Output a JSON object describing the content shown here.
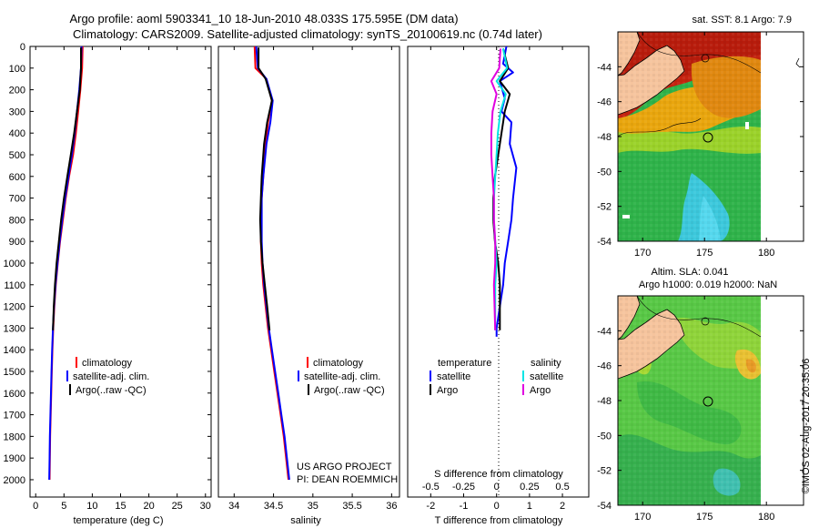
{
  "figure": {
    "title_line1": "Argo profile: aoml 5903341_10 18-Jun-2010 48.033S 175.595E (DM data)",
    "title_line2": "Climatology: CARS2009. Satellite-adjusted climatology: synTS_20100619.nc (0.74d later)",
    "credit": "©IMOS 02-Aug-2017 20:35:06",
    "project_line1": "US ARGO PROJECT",
    "project_line2": "PI: DEAN ROEMMICH"
  },
  "colors": {
    "climatology": "#ff0000",
    "satellite": "#0000ff",
    "argo": "#000000",
    "sal_satellite": "#00e5e5",
    "sal_argo": "#e000e0"
  },
  "chart_data": [
    {
      "type": "line",
      "name": "temperature-profile",
      "xlabel": "temperature (deg C)",
      "ylabel": "",
      "xlim": [
        -1,
        31
      ],
      "ylim": [
        0,
        2080
      ],
      "y_inverted": true,
      "xticks": [
        0,
        5,
        10,
        15,
        20,
        25,
        30
      ],
      "xtick_labels": [
        "0",
        "5",
        "10",
        "15",
        "20",
        "25",
        "30"
      ],
      "yticks": [
        0,
        100,
        200,
        300,
        400,
        500,
        600,
        700,
        800,
        900,
        1000,
        1100,
        1200,
        1300,
        1400,
        1500,
        1600,
        1700,
        1800,
        1900,
        2000
      ],
      "ytick_labels": [
        "0",
        "100",
        "200",
        "300",
        "400",
        "500",
        "600",
        "700",
        "800",
        "900",
        "1000",
        "1100",
        "1200",
        "1300",
        "1400",
        "1500",
        "1600",
        "1700",
        "1800",
        "1900",
        "2000"
      ],
      "legend": [
        "climatology",
        "satellite-adj. clim.",
        "Argo(..raw -QC)"
      ],
      "legend_position": "lower-center",
      "series": [
        {
          "name": "climatology",
          "color": "#ff0000",
          "x": [
            8.3,
            8.2,
            7.9,
            7.5,
            7.1,
            6.6,
            5.9,
            5.3,
            4.8,
            4.3,
            3.9,
            3.55,
            3.3,
            3.1,
            2.95,
            2.85,
            2.75,
            2.65,
            2.55,
            2.5,
            2.45
          ],
          "y": [
            0,
            100,
            200,
            300,
            400,
            500,
            600,
            700,
            800,
            900,
            1000,
            1100,
            1200,
            1300,
            1400,
            1500,
            1600,
            1700,
            1800,
            1900,
            2000
          ]
        },
        {
          "name": "satellite",
          "color": "#0000ff",
          "x": [
            8.1,
            8.0,
            7.7,
            7.3,
            6.9,
            6.4,
            5.8,
            5.2,
            4.7,
            4.25,
            3.85,
            3.5,
            3.25,
            3.05,
            2.9,
            2.8,
            2.7,
            2.6,
            2.5,
            2.45,
            2.4
          ],
          "y": [
            0,
            100,
            200,
            300,
            400,
            500,
            600,
            700,
            800,
            900,
            1000,
            1100,
            1200,
            1300,
            1400,
            1500,
            1600,
            1700,
            1800,
            1900,
            2000
          ]
        },
        {
          "name": "argo",
          "color": "#000000",
          "x": [
            8.0,
            8.0,
            7.8,
            7.3,
            6.8,
            6.2,
            5.6,
            5.0,
            4.5,
            4.1,
            3.7,
            3.4,
            3.2,
            3.05
          ],
          "y": [
            5,
            100,
            200,
            300,
            400,
            500,
            600,
            700,
            800,
            900,
            1000,
            1100,
            1200,
            1310
          ]
        }
      ]
    },
    {
      "type": "line",
      "name": "salinity-profile",
      "xlabel": "salinity",
      "xlim": [
        33.8,
        36.1
      ],
      "ylim": [
        0,
        2080
      ],
      "y_inverted": true,
      "xticks": [
        34,
        34.5,
        35,
        35.5,
        36
      ],
      "xtick_labels": [
        "34",
        "34.5",
        "35",
        "35.5",
        "36"
      ],
      "legend": [
        "climatology",
        "satellite-adj. clim.",
        "Argo(..raw -QC)"
      ],
      "legend_position": "lower-center",
      "series": [
        {
          "name": "climatology",
          "color": "#ff0000",
          "x": [
            34.26,
            34.27,
            34.41,
            34.48,
            34.43,
            34.4,
            34.37,
            34.35,
            34.34,
            34.34,
            34.35,
            34.37,
            34.4,
            34.43,
            34.47,
            34.51,
            34.55,
            34.59,
            34.63,
            34.66,
            34.69
          ],
          "y": [
            0,
            100,
            150,
            250,
            350,
            450,
            600,
            700,
            800,
            900,
            1000,
            1100,
            1200,
            1300,
            1400,
            1500,
            1600,
            1700,
            1800,
            1900,
            2000
          ]
        },
        {
          "name": "satellite",
          "color": "#0000ff",
          "x": [
            34.28,
            34.3,
            34.41,
            34.49,
            34.46,
            34.41,
            34.37,
            34.35,
            34.35,
            34.35,
            34.36,
            34.38,
            34.41,
            34.44,
            34.48,
            34.52,
            34.56,
            34.6,
            34.64,
            34.67,
            34.7
          ],
          "y": [
            0,
            100,
            150,
            250,
            350,
            450,
            600,
            700,
            800,
            900,
            1000,
            1100,
            1200,
            1300,
            1400,
            1500,
            1600,
            1700,
            1800,
            1900,
            2000
          ]
        },
        {
          "name": "argo",
          "color": "#000000",
          "x": [
            34.31,
            34.31,
            34.4,
            34.48,
            34.42,
            34.38,
            34.35,
            34.34,
            34.33,
            34.34,
            34.36,
            34.39,
            34.42,
            34.45
          ],
          "y": [
            5,
            100,
            150,
            250,
            350,
            450,
            600,
            700,
            800,
            900,
            1000,
            1100,
            1200,
            1310
          ]
        }
      ]
    },
    {
      "type": "line",
      "name": "difference-profile",
      "xlabel": "T difference from climatology",
      "xlabel_top": "S difference from climatology",
      "ylim": [
        0,
        2080
      ],
      "y_inverted": true,
      "t_xlim": [
        -2.7,
        2.8
      ],
      "t_xticks": [
        -2,
        -1,
        0,
        1,
        2
      ],
      "t_xtick_labels": [
        "-2",
        "-1",
        "0",
        "1",
        "2"
      ],
      "s_xlim": [
        -0.675,
        0.7
      ],
      "s_xticks": [
        -0.5,
        -0.25,
        0,
        0.25,
        0.5
      ],
      "s_xtick_labels": [
        "-0.5",
        "-0.25",
        "0",
        "0.25",
        "0.5"
      ],
      "legend_headers": [
        "temperature",
        "salinity"
      ],
      "legend": [
        "satellite",
        "Argo",
        "satellite",
        "Argo"
      ],
      "legend_position": "lower-center",
      "series": [
        {
          "name": "T satellite",
          "axis": "t",
          "color": "#0000ff",
          "x": [
            0.3,
            0.2,
            0.5,
            0.1,
            0.25,
            0.15,
            0.45,
            0.4,
            0.6,
            0.5,
            0.45,
            0.35,
            0.25,
            0.2,
            0.1,
            0.05,
            0.0,
            0.0
          ],
          "y": [
            0,
            80,
            120,
            160,
            240,
            300,
            350,
            450,
            560,
            700,
            800,
            900,
            1000,
            1100,
            1200,
            1250,
            1300,
            1340
          ]
        },
        {
          "name": "T Argo",
          "axis": "t",
          "color": "#000000",
          "x": [
            0.2,
            0.35,
            0.1,
            0.4,
            0.25,
            0.15,
            0.05,
            -0.05,
            -0.1,
            -0.1,
            -0.05,
            0.05,
            0.1,
            0.1
          ],
          "y": [
            10,
            100,
            160,
            220,
            300,
            400,
            500,
            600,
            700,
            800,
            900,
            1000,
            1100,
            1310
          ]
        },
        {
          "name": "S satellite",
          "axis": "s",
          "color": "#00e5e5",
          "x": [
            0.05,
            0.08,
            0.0,
            0.07,
            0.03,
            0.01,
            0.0,
            -0.01,
            -0.02,
            -0.02,
            -0.01,
            0.0,
            -0.01,
            -0.01
          ],
          "y": [
            10,
            100,
            160,
            220,
            300,
            400,
            500,
            600,
            700,
            800,
            900,
            1000,
            1100,
            1310
          ]
        },
        {
          "name": "S Argo",
          "axis": "s",
          "color": "#e000e0",
          "x": [
            0.03,
            0.02,
            -0.04,
            0.0,
            -0.03,
            -0.04,
            -0.04,
            -0.03,
            -0.02,
            -0.02,
            -0.01,
            -0.01,
            -0.02,
            -0.01
          ],
          "y": [
            10,
            100,
            160,
            220,
            300,
            400,
            500,
            600,
            700,
            800,
            900,
            1000,
            1100,
            1310
          ]
        }
      ]
    },
    {
      "type": "heatmap",
      "name": "sst-map",
      "title": "sat. SST: 8.1  Argo: 7.9",
      "xlim": [
        168,
        183
      ],
      "ylim": [
        -54,
        -42
      ],
      "xticks": [
        170,
        175,
        180
      ],
      "xtick_labels": [
        "170",
        "175",
        "180"
      ],
      "yticks": [
        -44,
        -46,
        -48,
        -50,
        -52,
        -54
      ],
      "ytick_labels": [
        "-44",
        "-46",
        "-48",
        "-50",
        "-52",
        "-54"
      ],
      "float_position": [
        175.6,
        -48.03
      ]
    },
    {
      "type": "heatmap",
      "name": "sla-map",
      "title_line1": "Altim. SLA: 0.041",
      "title_line2": "Argo h1000: 0.019 h2000: NaN",
      "xlim": [
        168,
        183
      ],
      "ylim": [
        -54,
        -42
      ],
      "xticks": [
        170,
        175,
        180
      ],
      "xtick_labels": [
        "170",
        "175",
        "180"
      ],
      "yticks": [
        -44,
        -46,
        -48,
        -50,
        -52,
        -54
      ],
      "ytick_labels": [
        "-44",
        "-46",
        "-48",
        "-50",
        "-52",
        "-54"
      ],
      "float_position": [
        175.6,
        -48.03
      ]
    }
  ]
}
